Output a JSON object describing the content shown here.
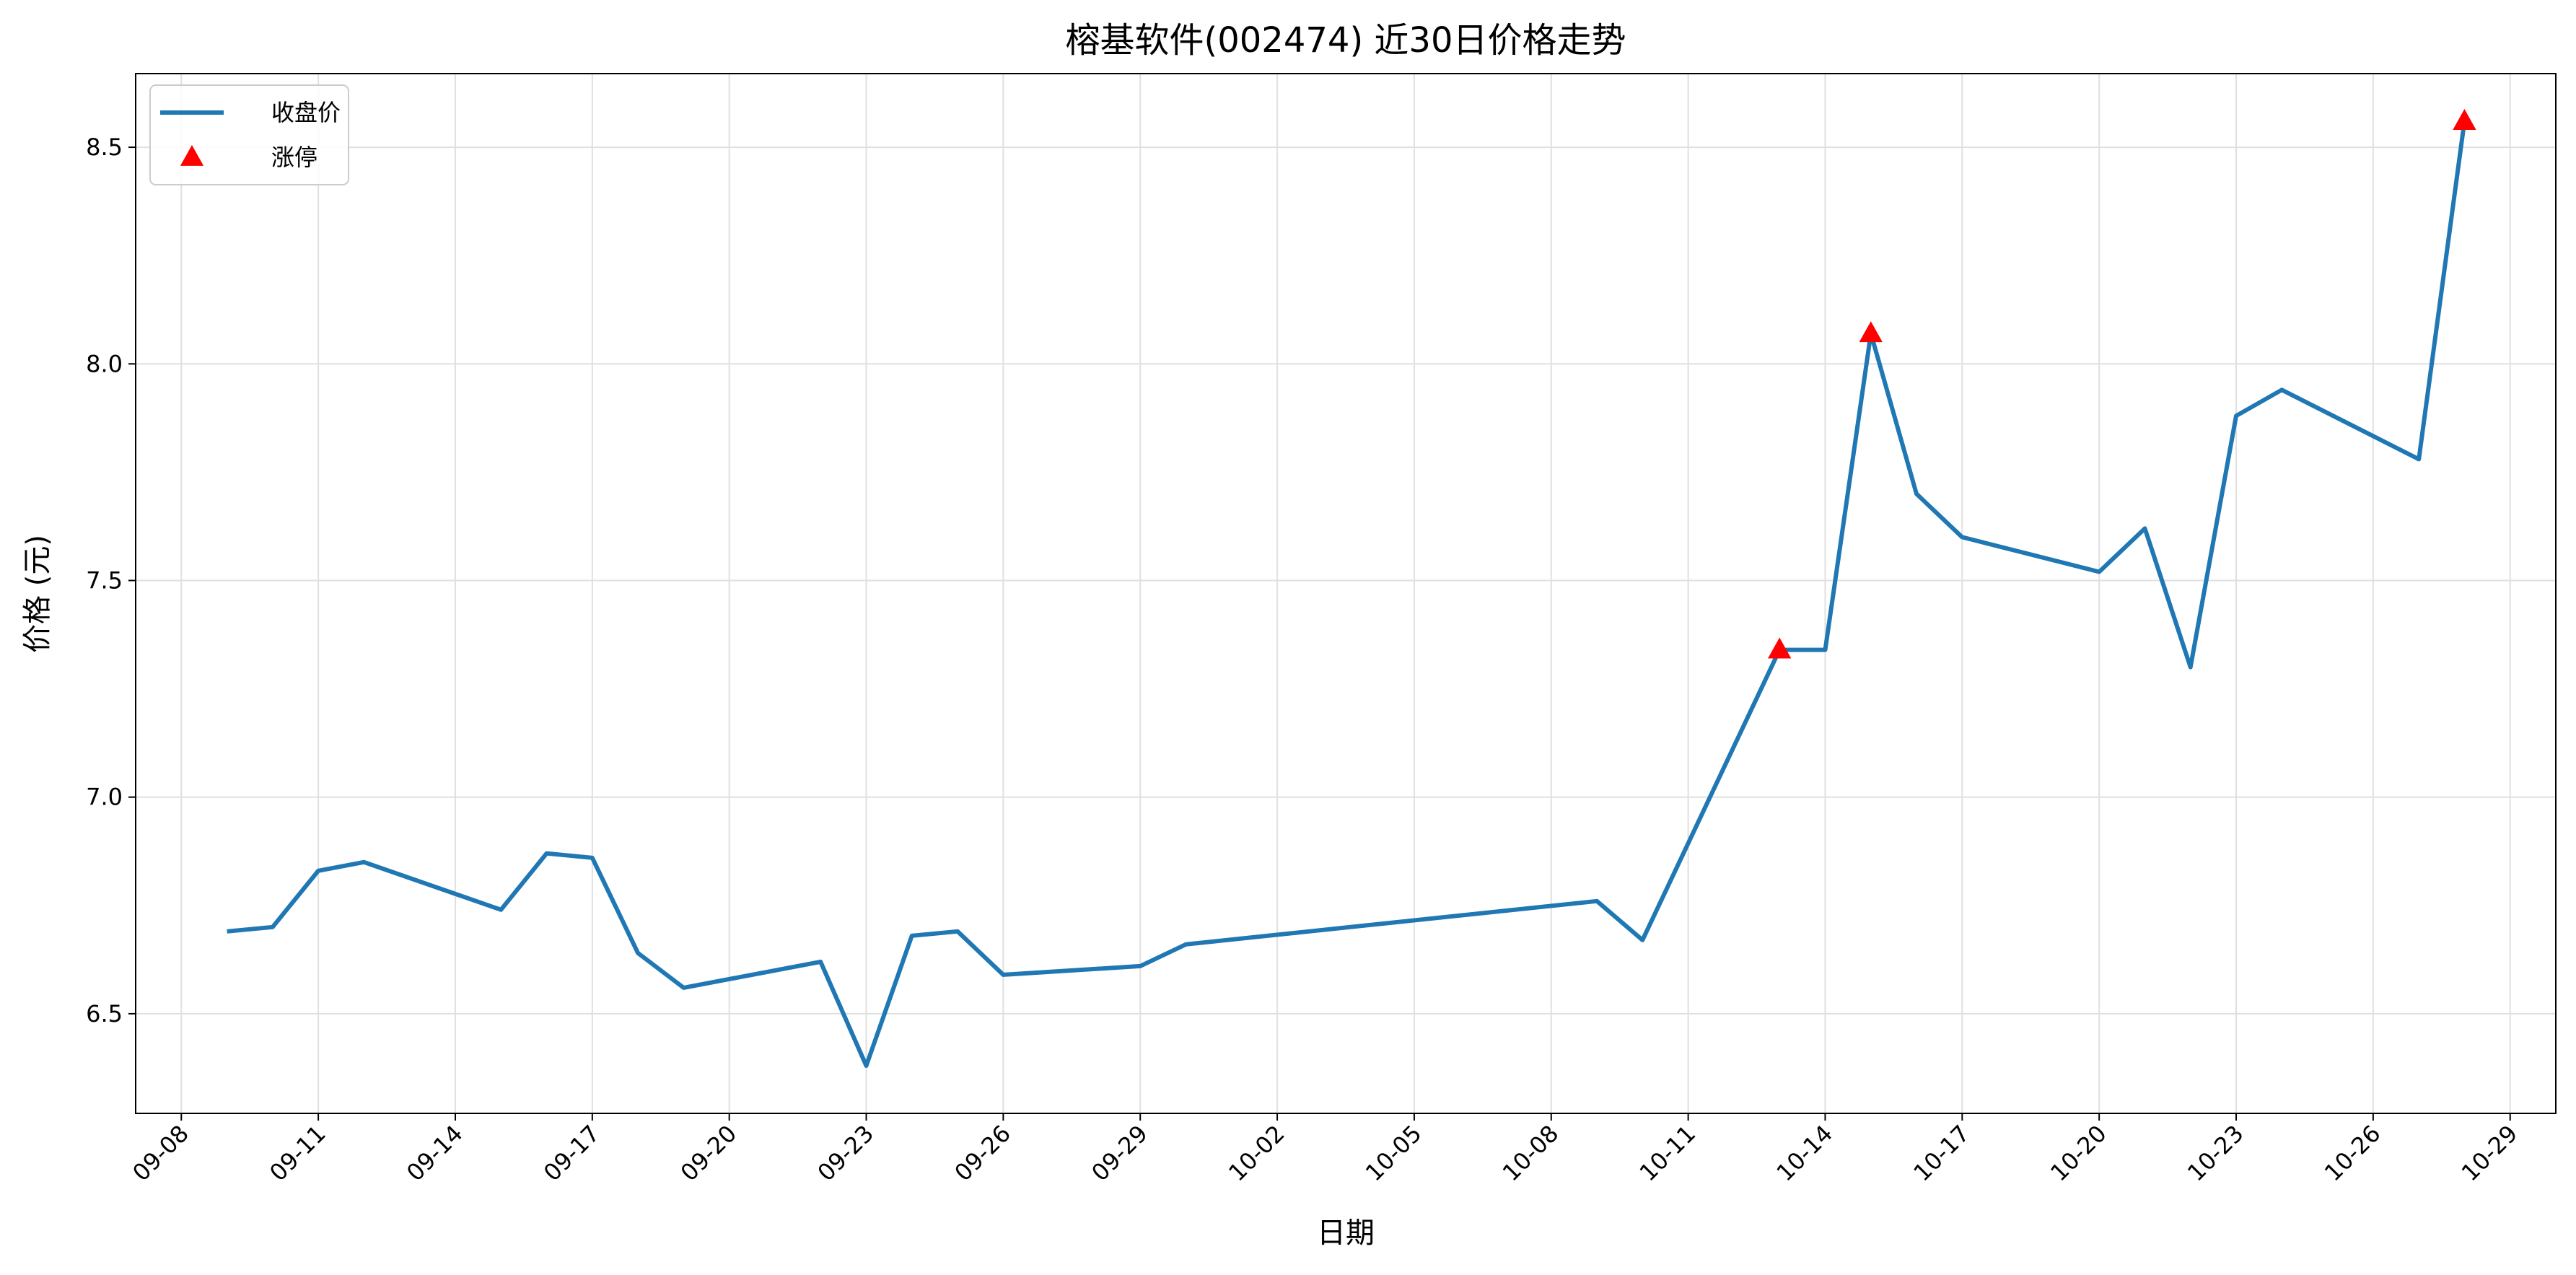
{
  "chart_data": {
    "type": "line",
    "title": "榕基软件(002474) 近30日价格走势",
    "xlabel": "日期",
    "ylabel": "价格 (元)",
    "grid": true,
    "legend_position": "top-left",
    "x_tick_labels": [
      "09-08",
      "09-11",
      "09-14",
      "09-17",
      "09-20",
      "09-23",
      "09-26",
      "09-29",
      "10-02",
      "10-05",
      "10-08",
      "10-11",
      "10-14",
      "10-17",
      "10-20",
      "10-23",
      "10-26",
      "10-29"
    ],
    "y_tick_labels": [
      "6.5",
      "7.0",
      "7.5",
      "8.0",
      "8.5"
    ],
    "y_ticks": [
      6.5,
      7.0,
      7.5,
      8.0,
      8.5
    ],
    "ylim": [
      6.27,
      8.67
    ],
    "xlim": [
      "09-07",
      "10-30"
    ],
    "series": [
      {
        "name": "收盘价",
        "type": "line",
        "color": "#1f77b4",
        "x": [
          "09-09",
          "09-10",
          "09-11",
          "09-12",
          "09-15",
          "09-16",
          "09-17",
          "09-18",
          "09-19",
          "09-22",
          "09-23",
          "09-24",
          "09-25",
          "09-26",
          "09-29",
          "09-30",
          "10-09",
          "10-10",
          "10-13",
          "10-14",
          "10-15",
          "10-16",
          "10-17",
          "10-20",
          "10-21",
          "10-22",
          "10-23",
          "10-24",
          "10-27",
          "10-28"
        ],
        "y": [
          6.69,
          6.7,
          6.83,
          6.85,
          6.74,
          6.87,
          6.86,
          6.64,
          6.56,
          6.62,
          6.38,
          6.68,
          6.69,
          6.59,
          6.61,
          6.66,
          6.76,
          6.67,
          7.34,
          7.34,
          8.07,
          7.7,
          7.6,
          7.52,
          7.62,
          7.3,
          7.88,
          7.94,
          7.78,
          8.56
        ]
      },
      {
        "name": "涨停",
        "type": "scatter",
        "marker": "triangle-up",
        "color": "#ff0000",
        "x": [
          "10-13",
          "10-15",
          "10-28"
        ],
        "y": [
          7.34,
          8.07,
          8.56
        ]
      }
    ]
  }
}
